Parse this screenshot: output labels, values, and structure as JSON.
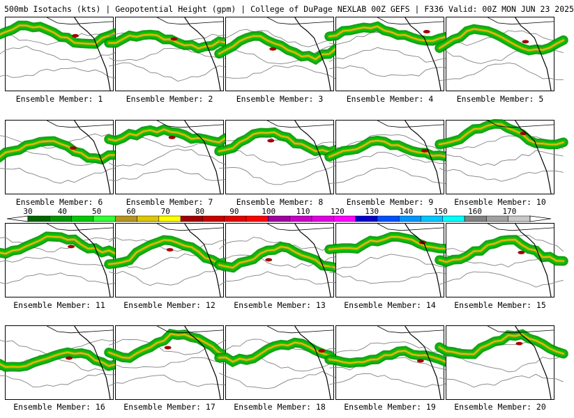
{
  "header": {
    "title": "500mb Isotachs (kts) | Geopotential Height (gpm) | College of DuPage NEXLAB   00Z GEFS | F336 Valid: 00Z MON JUN 23 2025"
  },
  "members": [
    "Ensemble Member: 1",
    "Ensemble Member: 2",
    "Ensemble Member: 3",
    "Ensemble Member: 4",
    "Ensemble Member: 5",
    "Ensemble Member: 6",
    "Ensemble Member: 7",
    "Ensemble Member: 8",
    "Ensemble Member: 9",
    "Ensemble Member: 10",
    "Ensemble Member: 11",
    "Ensemble Member: 12",
    "Ensemble Member: 13",
    "Ensemble Member: 14",
    "Ensemble Member: 15",
    "Ensemble Member: 16",
    "Ensemble Member: 17",
    "Ensemble Member: 18",
    "Ensemble Member: 19",
    "Ensemble Member: 20"
  ],
  "colorbar": {
    "ticks": [
      "30",
      "40",
      "50",
      "60",
      "70",
      "80",
      "90",
      "100",
      "110",
      "120",
      "130",
      "140",
      "150",
      "160",
      "170"
    ],
    "colors": [
      "#006400",
      "#009600",
      "#00c800",
      "#32ff32",
      "#b4961e",
      "#dcc800",
      "#ffff00",
      "#a00000",
      "#c80000",
      "#e10000",
      "#ff0000",
      "#a000a0",
      "#c800c8",
      "#e100e1",
      "#ff00ff",
      "#0000c8",
      "#0050ff",
      "#0096ff",
      "#00c8ff",
      "#00ffff",
      "#808080",
      "#a0a0a0",
      "#c8c8c8"
    ]
  }
}
